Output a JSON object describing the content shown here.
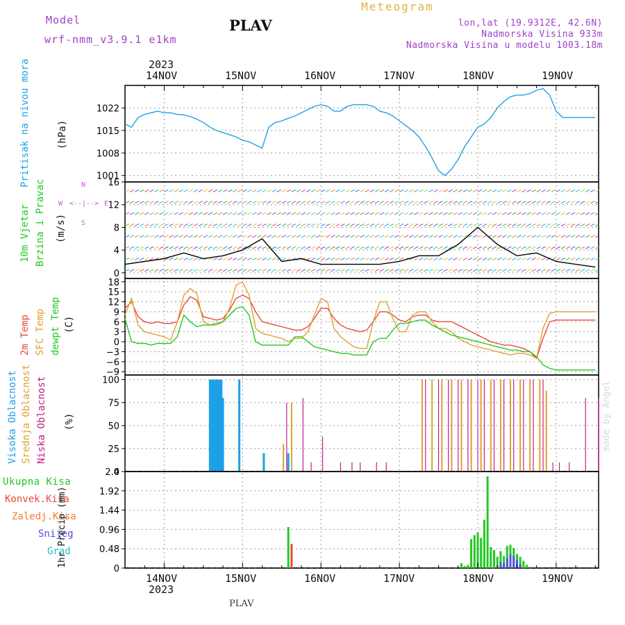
{
  "header": {
    "model_label": "Model",
    "model_name": "wrf-nmm_v3.9.1  e1km",
    "title": "PLAV",
    "meteogram_label": "Meteogram",
    "location": "lon,lat (19.9312E, 42.6N)",
    "altitude": "Nadmorska Visina 933m",
    "model_altitude": "Nadmorska Visina u modelu 1003.18m",
    "footer_title": "PLAV",
    "credit": "made by Angel"
  },
  "colors": {
    "pressure": "#1ea0e6",
    "temp2m": "#e8483a",
    "sfc": "#e0a030",
    "dewpt": "#22c822",
    "high_cloud": "#1ea0e6",
    "mid_cloud": "#e0a030",
    "low_cloud": "#c0208a",
    "total_precip": "#22c822",
    "conv_precip": "#e8483a",
    "frozen_precip": "#f08030",
    "snow": "#5050e0",
    "graupel": "#20c0c0",
    "wind_title": "#22c822",
    "compass": "#c060d0"
  },
  "chart_data": [
    {
      "type": "line",
      "name": "pressure",
      "ylabel_left": "Pritisak na nivou mora",
      "ylabel_unit": "(hPa)",
      "ylim": [
        999,
        1029
      ],
      "yticks": [
        1001,
        1008,
        1015,
        1022
      ],
      "x": [
        0,
        2,
        4,
        6,
        8,
        10,
        12,
        14,
        16,
        18,
        20,
        22,
        24,
        26,
        28,
        30,
        32,
        34,
        36,
        38,
        40,
        42,
        44,
        46,
        48,
        50,
        52,
        54,
        56,
        58,
        60,
        62,
        64,
        66,
        68,
        70,
        72,
        74,
        76,
        78,
        80,
        82,
        84,
        86,
        88,
        90,
        92,
        94,
        96,
        98,
        100,
        102,
        104,
        106,
        108,
        110,
        112,
        114,
        116,
        118,
        120,
        122,
        124,
        126,
        128,
        130,
        132,
        134,
        136,
        138,
        140,
        142,
        144
      ],
      "values": [
        1017,
        1016,
        1019,
        1020,
        1020.5,
        1021,
        1020.5,
        1020.5,
        1020,
        1019.8,
        1019.3,
        1018.5,
        1017.5,
        1016,
        1015,
        1014.3,
        1013.7,
        1013,
        1012,
        1011.5,
        1010.5,
        1009.5,
        1016,
        1017.5,
        1018,
        1018.8,
        1019.5,
        1020.5,
        1021.5,
        1022.5,
        1023,
        1022.5,
        1021,
        1021,
        1022.5,
        1023,
        1023,
        1023,
        1022.5,
        1021,
        1020.5,
        1019.5,
        1018,
        1016.5,
        1015,
        1013,
        1010,
        1006.5,
        1002.5,
        1001,
        1003,
        1006,
        1010,
        1013,
        1016,
        1017,
        1019,
        1022,
        1024,
        1025.5,
        1026,
        1026,
        1026.5,
        1027.5,
        1028,
        1026,
        1021,
        1019,
        1019,
        1019,
        1019,
        1019,
        1019
      ]
    },
    {
      "type": "line",
      "name": "wind",
      "ylabel_left1": "10m Vjetar",
      "ylabel_left2": "Brzina i Pravac",
      "ylabel_unit": "(m/s)",
      "compass": [
        "N",
        "E",
        "S",
        "W"
      ],
      "ylim": [
        -1,
        16
      ],
      "yticks": [
        0,
        4,
        8,
        12,
        16
      ],
      "x": [
        0,
        6,
        12,
        18,
        24,
        30,
        36,
        42,
        48,
        54,
        60,
        66,
        72,
        78,
        84,
        90,
        96,
        102,
        108,
        114,
        120,
        126,
        132,
        138,
        144
      ],
      "values": [
        1.5,
        2,
        2.5,
        3.5,
        2.5,
        3,
        4,
        6,
        2,
        2.5,
        1.5,
        1.5,
        1.5,
        1.5,
        2,
        3,
        3,
        5,
        8,
        5,
        3,
        3.5,
        2,
        1.5,
        1
      ]
    },
    {
      "type": "line",
      "name": "temperature",
      "ylabel_left1": "2m Temp",
      "ylabel_left2": "SFC Temp",
      "ylabel_left3": "dewpt Temp",
      "ylabel_unit": "(C)",
      "ylim": [
        -10,
        19
      ],
      "yticks": [
        -9,
        -6,
        -3,
        0,
        3,
        6,
        9,
        12,
        15,
        18
      ],
      "x": [
        0,
        2,
        4,
        6,
        8,
        10,
        12,
        14,
        16,
        18,
        20,
        22,
        24,
        26,
        28,
        30,
        32,
        34,
        36,
        38,
        40,
        42,
        44,
        46,
        48,
        50,
        52,
        54,
        56,
        58,
        60,
        62,
        64,
        66,
        68,
        70,
        72,
        74,
        76,
        78,
        80,
        82,
        84,
        86,
        88,
        90,
        92,
        94,
        96,
        98,
        100,
        102,
        104,
        106,
        108,
        110,
        112,
        114,
        116,
        118,
        120,
        122,
        124,
        126,
        128,
        130,
        132,
        134,
        136,
        138,
        140,
        142,
        144
      ],
      "series": [
        {
          "name": "2m Temp",
          "values": [
            10,
            12,
            7.5,
            6,
            5.5,
            6,
            5.5,
            5.5,
            6,
            11,
            13.5,
            12.5,
            7.5,
            7,
            6.5,
            7,
            9.5,
            13,
            14,
            13,
            9,
            6,
            5.5,
            5,
            4.5,
            4,
            3.5,
            3.5,
            4.5,
            7,
            10,
            10,
            7,
            5,
            4,
            3.5,
            3,
            3.5,
            6,
            9,
            9,
            8,
            6.5,
            6,
            7.5,
            8,
            8,
            6.5,
            6,
            6,
            6,
            5,
            4,
            3,
            2,
            1,
            0,
            -0.5,
            -1,
            -1,
            -1.5,
            -2,
            -3,
            -5,
            1,
            6,
            6.5,
            6.5,
            6.5,
            6.5,
            6.5,
            6.5,
            6.5
          ]
        },
        {
          "name": "SFC Temp",
          "values": [
            8,
            13,
            5,
            3,
            2.5,
            2,
            1.5,
            0.5,
            6,
            14,
            16,
            14.5,
            6,
            5,
            5,
            6,
            10,
            17,
            18,
            14,
            4,
            2.5,
            2,
            1.5,
            1,
            0,
            1,
            1,
            3,
            8,
            13,
            12,
            4,
            1.5,
            0,
            -1.5,
            -2,
            -2,
            6,
            12,
            12,
            7,
            3,
            3,
            8,
            9,
            9,
            6,
            4,
            4,
            3,
            1,
            0,
            -1,
            -1.5,
            -2,
            -2.5,
            -3,
            -3.5,
            -4,
            -3.5,
            -3.5,
            -4,
            -5,
            4,
            8.5,
            9,
            9,
            9,
            9,
            9,
            9,
            9
          ]
        },
        {
          "name": "dewpt Temp",
          "values": [
            7,
            0,
            -0.5,
            -0.5,
            -1,
            -0.5,
            -0.5,
            -0.5,
            1.5,
            8,
            6,
            4.5,
            5,
            5,
            5.5,
            6,
            8,
            10,
            10.5,
            8,
            0,
            -1,
            -1,
            -1,
            -1,
            -1,
            1.5,
            1.5,
            0,
            -1.5,
            -2,
            -2.5,
            -3,
            -3.5,
            -3.5,
            -4,
            -4,
            -4,
            0,
            1,
            1,
            3.5,
            5.5,
            5.5,
            6,
            6.5,
            6.5,
            5,
            4,
            3,
            2,
            1.5,
            1,
            0.5,
            0,
            -0.5,
            -1,
            -1.5,
            -2,
            -2.5,
            -2.5,
            -3,
            -3,
            -4.5,
            -7,
            -8,
            -8.5,
            -8.5,
            -8.5,
            -8.5,
            -8.5,
            -8.5,
            -8.5
          ]
        }
      ]
    },
    {
      "type": "bar",
      "name": "clouds",
      "ylabel_left1": "Visoka Oblacnost",
      "ylabel_left2": "Srednja Oblacnost",
      "ylabel_left3": "Niska Oblacnost",
      "ylabel_unit": "(%)",
      "ylim": [
        0,
        105
      ],
      "yticks": [
        0,
        25,
        50,
        75,
        100
      ],
      "series": [
        {
          "name": "Visoka Oblacnost",
          "x": [
            26,
            26.5,
            27,
            27.5,
            28,
            28.5,
            29,
            29.5,
            30,
            35,
            42.5,
            50
          ],
          "values": [
            100,
            100,
            100,
            100,
            100,
            100,
            100,
            100,
            80,
            100,
            20,
            20
          ]
        },
        {
          "name": "Srednja Oblacnost",
          "x": [
            48.5,
            51,
            91,
            94,
            97,
            100,
            103,
            106,
            109,
            112,
            115,
            118,
            121,
            124,
            127,
            129
          ],
          "values": [
            30,
            75,
            100,
            100,
            100,
            100,
            100,
            100,
            100,
            100,
            100,
            100,
            100,
            100,
            100,
            88
          ]
        },
        {
          "name": "Niska Oblacnost",
          "x": [
            49.5,
            54.5,
            57,
            60.5,
            66,
            69.5,
            72,
            77,
            80,
            92,
            96,
            99,
            102,
            105,
            108,
            110,
            113,
            116,
            119,
            122,
            125,
            128,
            131,
            133,
            136,
            141,
            145
          ],
          "values": [
            75,
            80,
            10,
            38,
            10,
            10,
            10,
            10,
            10,
            100,
            100,
            100,
            100,
            100,
            100,
            100,
            100,
            100,
            100,
            100,
            100,
            100,
            10,
            10,
            10,
            80,
            80
          ]
        }
      ]
    },
    {
      "type": "bar",
      "name": "precipitation",
      "labels": [
        "Ukupna Kisa",
        "Konvek.Kisa",
        "Zaledj.Kisa",
        "Snijeg",
        "Grad"
      ],
      "ylabel_unit": "1hr Precip (mm)",
      "ylim": [
        0,
        2.4
      ],
      "yticks": [
        0,
        0.48,
        0.96,
        1.44,
        1.92,
        2.4
      ],
      "series": [
        {
          "name": "Ukupna Kisa",
          "x": [
            50,
            103,
            104,
            105,
            106,
            107,
            108,
            109,
            110,
            111,
            112,
            113,
            114,
            115,
            116,
            117,
            118,
            119,
            120,
            121,
            122,
            123,
            124
          ],
          "values": [
            1.02,
            0.12,
            0.05,
            0.08,
            0.72,
            0.82,
            0.88,
            0.75,
            1.2,
            2.28,
            0.52,
            0.45,
            0.28,
            0.42,
            0.3,
            0.55,
            0.58,
            0.5,
            0.35,
            0.28,
            0.18,
            0.08,
            0.03
          ]
        },
        {
          "name": "Konvek.Kisa",
          "x": [
            51
          ],
          "values": [
            0.6
          ]
        },
        {
          "name": "Snijeg",
          "x": [
            115,
            116,
            117,
            118,
            119,
            120,
            121
          ],
          "values": [
            0.15,
            0.12,
            0.25,
            0.35,
            0.3,
            0.2,
            0.1
          ]
        }
      ]
    }
  ],
  "time_axis": {
    "year_top": "2023",
    "year_bottom": "2023",
    "start_hour_offset": 0,
    "day_labels": [
      "14NOV",
      "15NOV",
      "16NOV",
      "17NOV",
      "18NOV",
      "19NOV"
    ],
    "day_hours": [
      12,
      36,
      60,
      84,
      108,
      132
    ],
    "total_hours": 145
  }
}
